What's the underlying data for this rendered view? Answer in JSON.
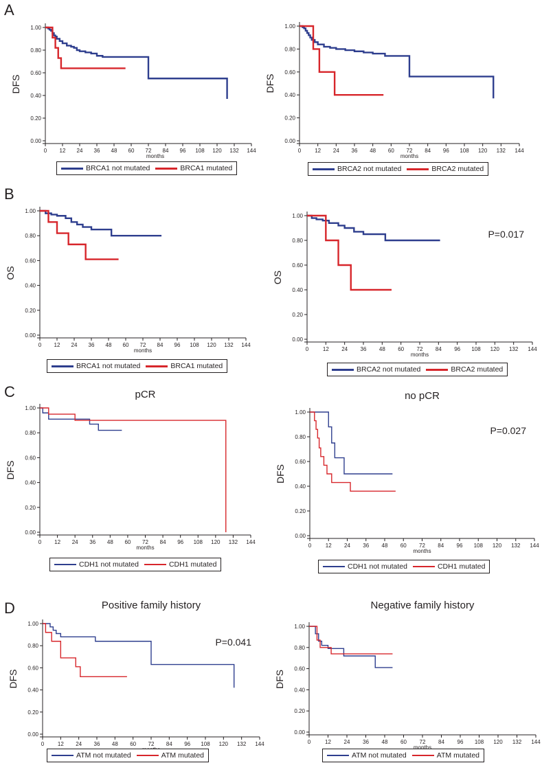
{
  "panels": [
    {
      "letter": "A"
    },
    {
      "letter": "B"
    },
    {
      "letter": "C"
    },
    {
      "letter": "D"
    }
  ],
  "colors": {
    "blue": "#2e3e8e",
    "red": "#d7262b",
    "axis": "#231f20"
  },
  "chart_data": [
    {
      "type": "line",
      "title": "",
      "xlabel": "months",
      "ylabel": "DFS",
      "xlim": [
        0,
        144
      ],
      "ylim": [
        0,
        1
      ],
      "x_ticks": [
        0,
        12,
        24,
        36,
        48,
        60,
        72,
        84,
        96,
        108,
        120,
        132,
        144
      ],
      "y_ticks": [
        "0.00",
        "0.20",
        "0.40",
        "0.60",
        "0.80",
        "1.00"
      ],
      "annotation": "",
      "series": [
        {
          "name": "BRCA1 not mutated",
          "color": "blue",
          "x": [
            0,
            2,
            3,
            4,
            5,
            6,
            7,
            8,
            10,
            12,
            15,
            18,
            20,
            22,
            24,
            28,
            32,
            36,
            40,
            48,
            56,
            64,
            72,
            80,
            90,
            100,
            110,
            120,
            127,
            127
          ],
          "y": [
            1.0,
            0.99,
            0.98,
            0.97,
            0.95,
            0.93,
            0.92,
            0.9,
            0.88,
            0.86,
            0.84,
            0.83,
            0.82,
            0.8,
            0.79,
            0.78,
            0.77,
            0.75,
            0.74,
            0.74,
            0.74,
            0.74,
            0.55,
            0.55,
            0.55,
            0.55,
            0.55,
            0.55,
            0.55,
            0.37
          ]
        },
        {
          "name": "BRCA1 mutated",
          "color": "red",
          "x": [
            0,
            5,
            7,
            9,
            11,
            13,
            56
          ],
          "y": [
            1.0,
            0.91,
            0.82,
            0.73,
            0.64,
            0.64,
            0.64
          ]
        }
      ]
    },
    {
      "type": "line",
      "title": "",
      "xlabel": "months",
      "ylabel": "DFS",
      "xlim": [
        0,
        144
      ],
      "ylim": [
        0,
        1
      ],
      "x_ticks": [
        0,
        12,
        24,
        36,
        48,
        60,
        72,
        84,
        96,
        108,
        120,
        132,
        144
      ],
      "y_ticks": [
        "0.00",
        "0.20",
        "0.40",
        "0.60",
        "0.80",
        "1.00"
      ],
      "annotation": "",
      "series": [
        {
          "name": "BRCA2 not mutated",
          "color": "blue",
          "x": [
            0,
            2,
            3,
            4,
            5,
            6,
            7,
            8,
            10,
            12,
            16,
            20,
            24,
            30,
            36,
            42,
            48,
            56,
            64,
            72,
            80,
            90,
            100,
            110,
            120,
            127,
            127
          ],
          "y": [
            1.0,
            0.99,
            0.98,
            0.96,
            0.94,
            0.92,
            0.9,
            0.88,
            0.86,
            0.84,
            0.82,
            0.81,
            0.8,
            0.79,
            0.78,
            0.77,
            0.76,
            0.74,
            0.74,
            0.56,
            0.56,
            0.56,
            0.56,
            0.56,
            0.56,
            0.56,
            0.37
          ]
        },
        {
          "name": "BRCA2 mutated",
          "color": "red",
          "x": [
            0,
            9,
            13,
            23,
            55
          ],
          "y": [
            1.0,
            0.8,
            0.6,
            0.4,
            0.4
          ]
        }
      ]
    },
    {
      "type": "line",
      "title": "",
      "xlabel": "months",
      "ylabel": "OS",
      "xlim": [
        0,
        144
      ],
      "ylim": [
        0,
        1
      ],
      "x_ticks": [
        0,
        12,
        24,
        36,
        48,
        60,
        72,
        84,
        96,
        108,
        120,
        132,
        144
      ],
      "y_ticks": [
        "0.00",
        "0.20",
        "0.40",
        "0.60",
        "0.80",
        "1.00"
      ],
      "annotation": "",
      "series": [
        {
          "name": "BRCA1 not mutated",
          "color": "blue",
          "x": [
            0,
            4,
            8,
            12,
            18,
            22,
            26,
            30,
            36,
            50,
            85
          ],
          "y": [
            1.0,
            0.98,
            0.97,
            0.96,
            0.94,
            0.91,
            0.89,
            0.87,
            0.85,
            0.8,
            0.8
          ]
        },
        {
          "name": "BRCA1 mutated",
          "color": "red",
          "x": [
            0,
            6,
            12,
            20,
            32,
            55
          ],
          "y": [
            1.0,
            0.91,
            0.82,
            0.73,
            0.61,
            0.61
          ]
        }
      ]
    },
    {
      "type": "line",
      "title": "",
      "xlabel": "months",
      "ylabel": "OS",
      "xlim": [
        0,
        144
      ],
      "ylim": [
        0,
        1
      ],
      "x_ticks": [
        0,
        12,
        24,
        36,
        48,
        60,
        72,
        84,
        96,
        108,
        120,
        132,
        144
      ],
      "y_ticks": [
        "0.00",
        "0.20",
        "0.40",
        "0.60",
        "0.80",
        "1.00"
      ],
      "annotation": "P=0.017",
      "series": [
        {
          "name": "BRCA2 not mutated",
          "color": "blue",
          "x": [
            0,
            3,
            6,
            10,
            14,
            20,
            24,
            30,
            36,
            50,
            85
          ],
          "y": [
            1.0,
            0.98,
            0.97,
            0.96,
            0.94,
            0.92,
            0.9,
            0.87,
            0.85,
            0.8,
            0.8
          ]
        },
        {
          "name": "BRCA2 mutated",
          "color": "red",
          "x": [
            0,
            12,
            20,
            28,
            54
          ],
          "y": [
            1.0,
            0.8,
            0.6,
            0.4,
            0.4
          ]
        }
      ]
    },
    {
      "type": "line",
      "title": "pCR",
      "xlabel": "months",
      "ylabel": "DFS",
      "xlim": [
        0,
        144
      ],
      "ylim": [
        0,
        1
      ],
      "x_ticks": [
        0,
        12,
        24,
        36,
        48,
        60,
        72,
        84,
        96,
        108,
        120,
        132,
        144
      ],
      "y_ticks": [
        "0.00",
        "0.20",
        "0.40",
        "0.60",
        "0.80",
        "1.00"
      ],
      "annotation": "",
      "series": [
        {
          "name": "CDH1 not mutated",
          "color": "blue",
          "x": [
            0,
            2,
            6,
            24,
            34,
            40,
            56
          ],
          "y": [
            1.0,
            0.96,
            0.91,
            0.91,
            0.87,
            0.82,
            0.82
          ]
        },
        {
          "name": "CDH1 mutated",
          "color": "red",
          "x": [
            0,
            6,
            24,
            72,
            127,
            127
          ],
          "y": [
            1.0,
            0.95,
            0.9,
            0.9,
            0.45,
            0.0
          ]
        }
      ]
    },
    {
      "type": "line",
      "title": "no pCR",
      "xlabel": "months",
      "ylabel": "DFS",
      "xlim": [
        0,
        144
      ],
      "ylim": [
        0,
        1
      ],
      "x_ticks": [
        0,
        12,
        24,
        36,
        48,
        60,
        72,
        84,
        96,
        108,
        120,
        132,
        144
      ],
      "y_ticks": [
        "0.00",
        "0.20",
        "0.40",
        "0.60",
        "0.80",
        "1.00"
      ],
      "annotation": "P=0.027",
      "series": [
        {
          "name": "CDH1 not mutated",
          "color": "blue",
          "x": [
            0,
            9,
            12,
            14,
            16,
            22,
            53
          ],
          "y": [
            1.0,
            1.0,
            0.88,
            0.75,
            0.63,
            0.5,
            0.5
          ]
        },
        {
          "name": "CDH1 mutated",
          "color": "red",
          "x": [
            0,
            3,
            4,
            5,
            6,
            7,
            9,
            11,
            14,
            26,
            55
          ],
          "y": [
            1.0,
            0.93,
            0.86,
            0.79,
            0.71,
            0.64,
            0.57,
            0.5,
            0.43,
            0.36,
            0.36
          ]
        }
      ]
    },
    {
      "type": "line",
      "title": "Positive  family history",
      "xlabel": "months",
      "ylabel": "DFS",
      "xlim": [
        0,
        144
      ],
      "ylim": [
        0,
        1
      ],
      "x_ticks": [
        0,
        12,
        24,
        36,
        48,
        60,
        72,
        84,
        96,
        108,
        120,
        132,
        144
      ],
      "y_ticks": [
        "0.00",
        "0.20",
        "0.40",
        "0.60",
        "0.80",
        "1.00"
      ],
      "annotation": "P=0.041",
      "series": [
        {
          "name": "ATM not mutated",
          "color": "blue",
          "x": [
            0,
            5,
            7,
            9,
            12,
            35,
            72,
            127,
            127
          ],
          "y": [
            1.0,
            0.97,
            0.94,
            0.91,
            0.88,
            0.84,
            0.63,
            0.63,
            0.42
          ]
        },
        {
          "name": "ATM mutated",
          "color": "red",
          "x": [
            0,
            2,
            6,
            12,
            22,
            25,
            56
          ],
          "y": [
            1.0,
            0.92,
            0.84,
            0.69,
            0.61,
            0.52,
            0.52
          ]
        }
      ]
    },
    {
      "type": "line",
      "title": "Negative family history",
      "xlabel": "months",
      "ylabel": "DFS",
      "xlim": [
        0,
        144
      ],
      "ylim": [
        0,
        1
      ],
      "x_ticks": [
        0,
        12,
        24,
        36,
        48,
        60,
        72,
        84,
        96,
        108,
        120,
        132,
        144
      ],
      "y_ticks": [
        "0.00",
        "0.20",
        "0.40",
        "0.60",
        "0.80",
        "1.00"
      ],
      "annotation": "",
      "series": [
        {
          "name": "ATM not mutated",
          "color": "blue",
          "x": [
            0,
            4,
            6,
            8,
            12,
            22,
            42,
            53
          ],
          "y": [
            1.0,
            0.93,
            0.86,
            0.82,
            0.79,
            0.72,
            0.61,
            0.61
          ]
        },
        {
          "name": "ATM mutated",
          "color": "red",
          "x": [
            0,
            5,
            7,
            9,
            14,
            53
          ],
          "y": [
            1.0,
            0.87,
            0.8,
            0.8,
            0.74,
            0.74
          ]
        }
      ]
    }
  ]
}
